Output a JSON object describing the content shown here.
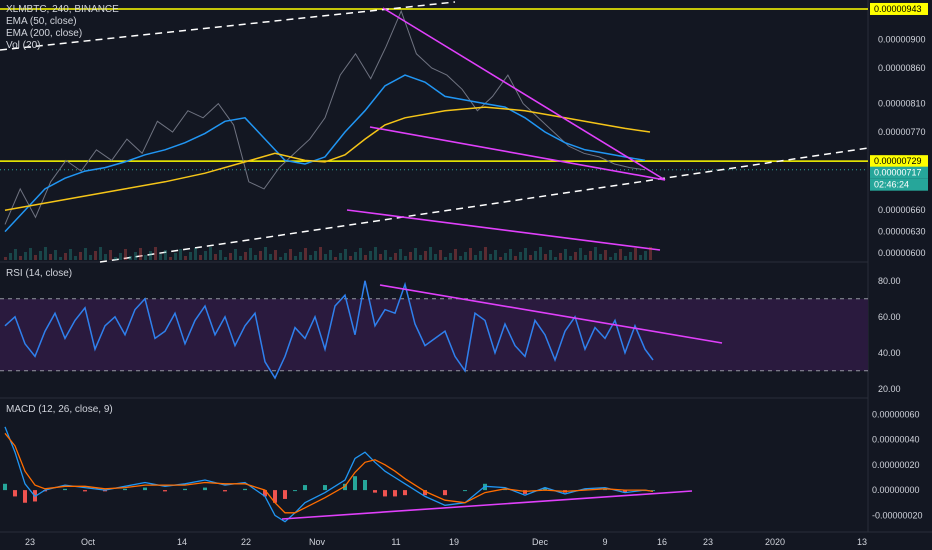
{
  "header": {
    "symbol_line": "XLMBTC, 240, BINANCE",
    "ema50_label": "EMA (50, close)",
    "ema200_label": "EMA (200, close)",
    "vol_label": "Vol (20)"
  },
  "rsi_panel": {
    "label": "RSI (14, close)"
  },
  "macd_panel": {
    "label": "MACD (12, 26, close, 9)"
  },
  "price_tags": {
    "resistance_tag": "0.00000943",
    "support_tag": "0.00000729",
    "current_tag": "0.00000717",
    "countdown_tag": "02:46:24"
  },
  "colors": {
    "background": "#131722",
    "price_line": "#ffffff",
    "ema50": "#2196f3",
    "ema200": "#f5c518",
    "trendline": "#e040fb",
    "horizontal_level": "#ffff00",
    "rsi_line": "#2f80ed",
    "rsi_band": "#2a1a3e",
    "macd_line": "#2196f3",
    "signal_line": "#ff6d00",
    "hist_pos": "#26a69a",
    "hist_neg": "#ef5350",
    "current_price": "#26a69a"
  },
  "chart_data": [
    {
      "type": "line",
      "panel": "price",
      "title": "XLMBTC, 240, BINANCE",
      "y_ticks": [
        "0.00000900",
        "0.00000860",
        "0.00000810",
        "0.00000770",
        "0.00000729",
        "0.00000717",
        "0.00000660",
        "0.00000630",
        "0.00000600"
      ],
      "ylim": [
        5.9e-06,
        9.5e-06
      ],
      "x_ticks": [
        "23",
        "Oct",
        "14",
        "22",
        "Nov",
        "11",
        "19",
        "Dec",
        "9",
        "16",
        "23",
        "2020",
        "13"
      ],
      "series": [
        {
          "name": "EMA (50, close)",
          "color": "#2196f3",
          "x": [
            0,
            20,
            40,
            60,
            80,
            100,
            120,
            140,
            160,
            180,
            200,
            220,
            240,
            260,
            280,
            300,
            320,
            340,
            360,
            380,
            400,
            420,
            440,
            460,
            480,
            500,
            520,
            540,
            560,
            580,
            600,
            620,
            640
          ],
          "y": [
            6.3e-06,
            6.6e-06,
            6.9e-06,
            7.05e-06,
            7.15e-06,
            7.2e-06,
            7.28e-06,
            7.38e-06,
            7.45e-06,
            7.55e-06,
            7.68e-06,
            7.85e-06,
            7.9e-06,
            7.6e-06,
            7.3e-06,
            7.25e-06,
            7.35e-06,
            7.7e-06,
            8e-06,
            8.35e-06,
            8.5e-06,
            8.4e-06,
            8.2e-06,
            8.15e-06,
            8.1e-06,
            8.05e-06,
            7.9e-06,
            7.7e-06,
            7.55e-06,
            7.45e-06,
            7.4e-06,
            7.35e-06,
            7.3e-06
          ]
        },
        {
          "name": "EMA (200, close)",
          "color": "#f5c518",
          "x": [
            0,
            40,
            80,
            120,
            160,
            200,
            240,
            270,
            300,
            320,
            340,
            360,
            380,
            400,
            440,
            480,
            520,
            560,
            600,
            620,
            645
          ],
          "y": [
            6.6e-06,
            6.7e-06,
            6.8e-06,
            6.9e-06,
            7e-06,
            7.12e-06,
            7.28e-06,
            7.4e-06,
            7.3e-06,
            7.28e-06,
            7.38e-06,
            7.6e-06,
            7.8e-06,
            7.9e-06,
            8e-06,
            8.05e-06,
            8e-06,
            7.9e-06,
            7.8e-06,
            7.75e-06,
            7.7e-06
          ]
        }
      ]
    },
    {
      "type": "line",
      "panel": "rsi",
      "title": "RSI (14, close)",
      "y_ticks": [
        "80.00",
        "60.00",
        "40.00",
        "20.00"
      ],
      "ylim": [
        16,
        86
      ],
      "band": [
        30,
        70
      ],
      "series": [
        {
          "name": "RSI",
          "x": [
            0,
            10,
            20,
            30,
            40,
            50,
            60,
            70,
            80,
            90,
            100,
            110,
            120,
            130,
            140,
            150,
            160,
            170,
            180,
            190,
            200,
            210,
            220,
            230,
            240,
            250,
            260,
            270,
            280,
            290,
            300,
            310,
            320,
            330,
            340,
            350,
            360,
            370,
            380,
            390,
            400,
            410,
            420,
            430,
            440,
            450,
            460,
            470,
            480,
            490,
            500,
            510,
            520,
            530,
            540,
            550,
            560,
            570,
            580,
            590,
            600,
            610,
            620,
            630,
            640,
            648
          ],
          "y": [
            55,
            60,
            45,
            38,
            52,
            62,
            48,
            58,
            65,
            42,
            55,
            60,
            50,
            64,
            70,
            48,
            52,
            62,
            45,
            58,
            66,
            50,
            60,
            44,
            55,
            62,
            35,
            26,
            38,
            54,
            48,
            60,
            42,
            66,
            72,
            50,
            80,
            55,
            64,
            62,
            78,
            56,
            44,
            48,
            52,
            38,
            30,
            62,
            58,
            40,
            56,
            44,
            38,
            58,
            50,
            36,
            52,
            60,
            42,
            54,
            48,
            58,
            40,
            55,
            42,
            36
          ]
        }
      ]
    },
    {
      "type": "line",
      "panel": "macd",
      "title": "MACD (12, 26, close, 9)",
      "y_ticks": [
        "0.00000060",
        "0.00000040",
        "0.00000020",
        "0.00000000",
        "-0.00000020"
      ],
      "ylim": [
        -3e-07,
        6.5e-07
      ],
      "series": [
        {
          "name": "MACD",
          "x": [
            0,
            10,
            20,
            30,
            40,
            60,
            80,
            100,
            120,
            140,
            160,
            180,
            200,
            220,
            240,
            260,
            270,
            280,
            290,
            300,
            320,
            340,
            350,
            360,
            370,
            380,
            390,
            400,
            420,
            440,
            460,
            480,
            500,
            520,
            540,
            560,
            580,
            600,
            620,
            640,
            648
          ],
          "y": [
            5e-07,
            3e-07,
            5e-08,
            -5e-08,
            0.0,
            4e-08,
            2e-08,
            0.0,
            3e-08,
            6e-08,
            3e-08,
            5e-08,
            8e-08,
            4e-08,
            6e-08,
            -5e-08,
            -2e-07,
            -2.5e-07,
            -1.8e-07,
            -1e-07,
            -2e-08,
            8e-08,
            2.5e-07,
            3e-07,
            2.2e-07,
            1.5e-07,
            1e-07,
            5e-08,
            -5e-08,
            -1.2e-07,
            -1e-07,
            3e-08,
            2e-08,
            -4e-08,
            2e-08,
            -3e-08,
            1e-08,
            2e-08,
            -2e-08,
            0.0,
            -1e-08
          ]
        },
        {
          "name": "Signal",
          "x": [
            0,
            10,
            20,
            30,
            40,
            60,
            80,
            100,
            120,
            140,
            160,
            180,
            200,
            220,
            240,
            260,
            270,
            280,
            290,
            300,
            320,
            340,
            350,
            360,
            370,
            380,
            390,
            400,
            420,
            440,
            460,
            480,
            500,
            520,
            540,
            560,
            580,
            600,
            620,
            640,
            648
          ],
          "y": [
            4.5e-07,
            3.5e-07,
            1.5e-07,
            4e-08,
            1e-08,
            3e-08,
            3e-08,
            1e-08,
            2e-08,
            4e-08,
            4e-08,
            4e-08,
            6e-08,
            5e-08,
            5e-08,
            0.0,
            -1e-07,
            -1.8e-07,
            -1.8e-07,
            -1.4e-07,
            -6e-08,
            3e-08,
            1.4e-07,
            2.2e-07,
            2.4e-07,
            2e-07,
            1.5e-07,
            9e-08,
            -1e-08,
            -8e-08,
            -1e-07,
            -2e-08,
            1e-08,
            -1e-08,
            0.0,
            -1e-08,
            0.0,
            1e-08,
            0.0,
            0.0,
            -1e-08
          ]
        }
      ]
    }
  ]
}
